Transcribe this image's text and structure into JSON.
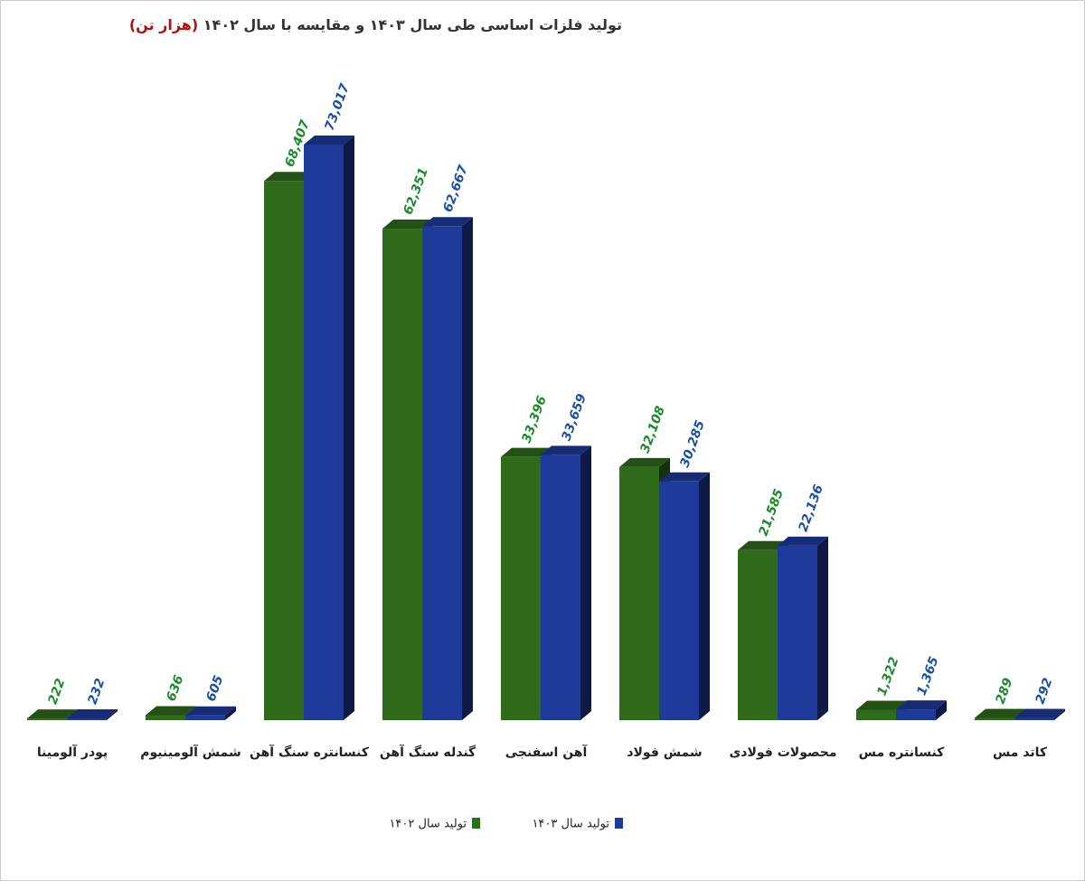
{
  "chart_data": {
    "type": "bar3d",
    "title": "تولید فلزات اساسی طی سال ۱۴۰۳ و مقایسه با سال ۱۴۰۲",
    "unit": "(هزار تن)",
    "categories": [
      "پودر آلومینا",
      "شمش آلومینیوم",
      "کنسانتره سنگ آهن",
      "گندله سنگ آهن",
      "آهن اسفنجی",
      "شمش فولاد",
      "محصولات فولادی",
      "کنسانتره مس",
      "کاتد مس"
    ],
    "series": [
      {
        "name": "تولید سال ۱۴۰۲",
        "color": "#2f6b1a",
        "label_color": "#1a8a2a",
        "values": [
          222,
          636,
          68407,
          62351,
          33396,
          32108,
          21585,
          1322,
          289
        ],
        "value_labels": [
          "222",
          "636",
          "68,407",
          "62,351",
          "33,396",
          "32,108",
          "21,585",
          "1,322",
          "289"
        ]
      },
      {
        "name": "تولید سال ۱۴۰۳",
        "color": "#1e3a9a",
        "label_color": "#1a4fa8",
        "values": [
          232,
          605,
          73017,
          62667,
          33659,
          30285,
          22136,
          1365,
          292
        ],
        "value_labels": [
          "232",
          "605",
          "73,017",
          "62,667",
          "33,659",
          "30,285",
          "22,136",
          "1,365",
          "292"
        ]
      }
    ]
  }
}
